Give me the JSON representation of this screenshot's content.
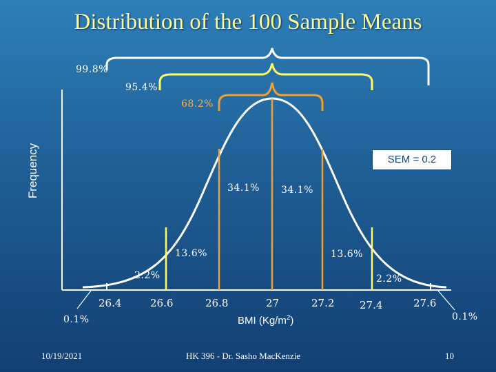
{
  "title": "Distribution of the 100 Sample Means",
  "y_axis_label": "Frequency",
  "x_axis_label": "BMI (Kg/m",
  "x_axis_label_sup": "2",
  "x_axis_label_close": ")",
  "sem_label": "SEM = 0.2",
  "x_ticks": [
    "26.4",
    "26.6",
    "26.8",
    "27",
    "27.2",
    "27.4",
    "27.6"
  ],
  "brackets": {
    "outer": "99.8%",
    "middle": "95.4%",
    "inner": "68.2%"
  },
  "regions": {
    "center_left": "34.1%",
    "center_right": "34.1%",
    "mid_left": "13.6%",
    "mid_right": "13.6%",
    "tail_left": "2.2%",
    "tail_right": "2.2%",
    "extreme_left": "0.1%",
    "extreme_right": "0.1%"
  },
  "colors": {
    "outer": "#ffffff",
    "middle": "#ffff66",
    "inner": "#f0a030",
    "curve": "#ffffff"
  },
  "footer": {
    "date": "10/19/2021",
    "course": "HK 396 - Dr. Sasho MacKenzie",
    "page": "10"
  }
}
